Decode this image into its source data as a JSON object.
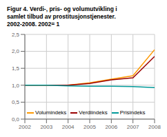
{
  "chart_data": {
    "type": "line",
    "title": "Figur 4. Verdi-, pris- og volumutvikling i\nsamlet tilbud av prostitusjonstjenester.\n2002-2008. 2002= 1",
    "x": [
      2002,
      2003,
      2004,
      2005,
      2006,
      2007,
      2008
    ],
    "series": [
      {
        "name": "Volumindeks",
        "color": "#FF9900",
        "values": [
          1.0,
          1.0,
          1.0,
          1.07,
          1.18,
          1.28,
          2.05
        ]
      },
      {
        "name": "Verdiindeks",
        "color": "#990000",
        "values": [
          1.0,
          1.0,
          1.0,
          1.05,
          1.16,
          1.22,
          1.85
        ]
      },
      {
        "name": "Prisindeks",
        "color": "#009999",
        "values": [
          1.0,
          1.0,
          0.98,
          0.97,
          0.97,
          0.96,
          0.93
        ]
      }
    ],
    "xlim": [
      2002,
      2008
    ],
    "xticks": [
      2002,
      2003,
      2004,
      2005,
      2006,
      2007,
      2008
    ],
    "ylim": [
      0.0,
      2.5
    ],
    "yticks": [
      {
        "value": 0.0,
        "label": "0,0"
      },
      {
        "value": 0.5,
        "label": "0,5"
      },
      {
        "value": 1.0,
        "label": "1,0"
      },
      {
        "value": 1.5,
        "label": "1,5"
      },
      {
        "value": 2.0,
        "label": "2,0"
      },
      {
        "value": 2.5,
        "label": "2,5"
      }
    ],
    "grid": true,
    "legend": "lower left"
  }
}
